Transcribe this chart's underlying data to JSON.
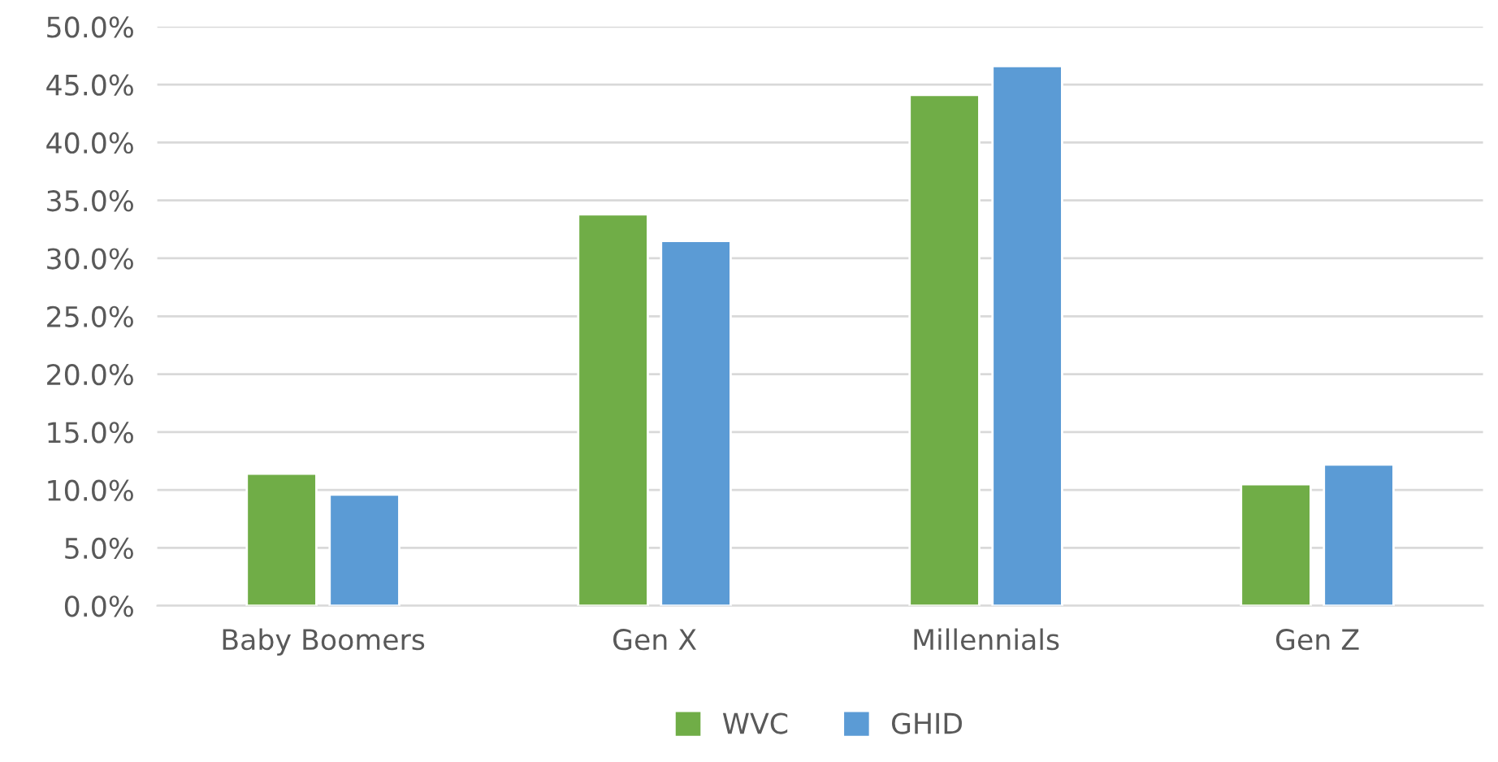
{
  "chart_data": {
    "type": "bar",
    "categories": [
      "Baby Boomers",
      "Gen X",
      "Millennials",
      "Gen Z"
    ],
    "series": [
      {
        "name": "WVC",
        "color": "#70ad47",
        "values": [
          11.4,
          33.8,
          44.1,
          10.5
        ]
      },
      {
        "name": "GHID",
        "color": "#5b9bd5",
        "values": [
          9.6,
          31.5,
          46.6,
          12.2
        ]
      }
    ],
    "ylim": [
      0,
      50
    ],
    "yticks": [
      {
        "value": 0,
        "label": "0.0%"
      },
      {
        "value": 5,
        "label": "5.0%"
      },
      {
        "value": 10,
        "label": "10.0%"
      },
      {
        "value": 15,
        "label": "15.0%"
      },
      {
        "value": 20,
        "label": "20.0%"
      },
      {
        "value": 25,
        "label": "25.0%"
      },
      {
        "value": 30,
        "label": "30.0%"
      },
      {
        "value": 35,
        "label": "35.0%"
      },
      {
        "value": 40,
        "label": "40.0%"
      },
      {
        "value": 45,
        "label": "45.0%"
      },
      {
        "value": 50,
        "label": "50.0%"
      }
    ],
    "grid": "y",
    "legend": "bottom"
  }
}
